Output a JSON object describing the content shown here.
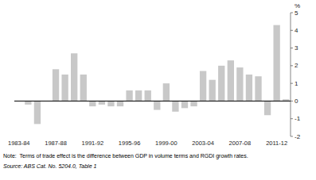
{
  "chart_data": {
    "type": "bar",
    "categories": [
      "1983-84",
      null,
      null,
      null,
      "1987-88",
      null,
      null,
      null,
      "1991-92",
      null,
      null,
      null,
      "1995-96",
      null,
      null,
      null,
      "1999-00",
      null,
      null,
      null,
      "2003-04",
      null,
      null,
      null,
      "2007-08",
      null,
      null,
      null,
      "2011-12",
      null
    ],
    "values": [
      0.0,
      -0.2,
      -1.3,
      0.0,
      1.8,
      1.5,
      2.7,
      1.5,
      -0.3,
      -0.2,
      -0.3,
      -0.3,
      0.6,
      0.6,
      0.6,
      -0.5,
      1.0,
      -0.6,
      -0.4,
      -0.3,
      1.7,
      1.2,
      2.0,
      2.3,
      1.9,
      1.5,
      1.4,
      -0.8,
      4.3,
      0.1
    ],
    "color": "#c8c8c8",
    "y_label": "%",
    "ylim": [
      -2,
      5
    ],
    "yticks": [
      -2,
      -1,
      0,
      1,
      2,
      3,
      4,
      5
    ],
    "grid": false,
    "annotations": [
      "Note:  Terms of trade effect is the difference between GDP in volume terms and RGDI growth rates.",
      "Source: ABS Cat. No. 5204.0, Table 1"
    ]
  }
}
